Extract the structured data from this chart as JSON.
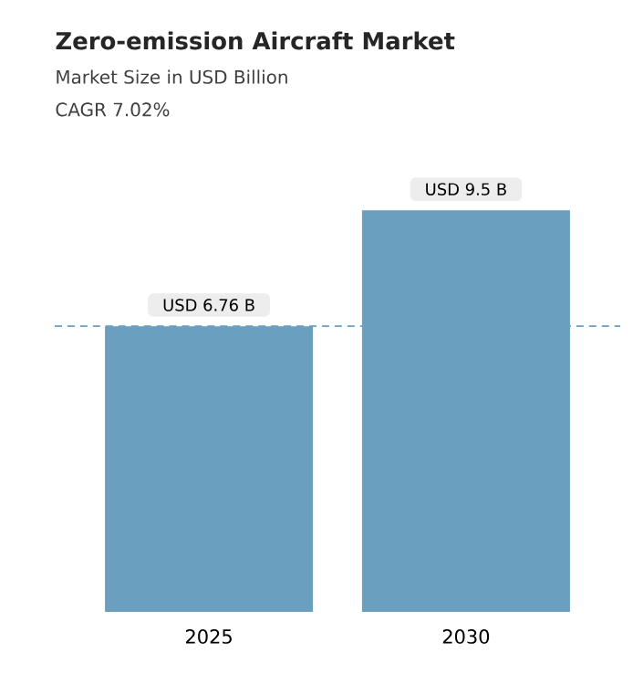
{
  "chart_data": {
    "type": "bar",
    "title": "Zero-emission Aircraft Market",
    "subtitle": "Market Size in USD Billion",
    "annotations": [
      "CAGR 7.02%"
    ],
    "categories": [
      "2025",
      "2030"
    ],
    "values": [
      6.76,
      9.5
    ],
    "color": "#6a9fc0",
    "value_labels": [
      "USD 6.76 B",
      "USD 9.5 B"
    ],
    "ref_lines": [
      {
        "axis": "y",
        "value": 6.76,
        "color": "#6a9fc0",
        "line_style": "dashed"
      }
    ]
  }
}
